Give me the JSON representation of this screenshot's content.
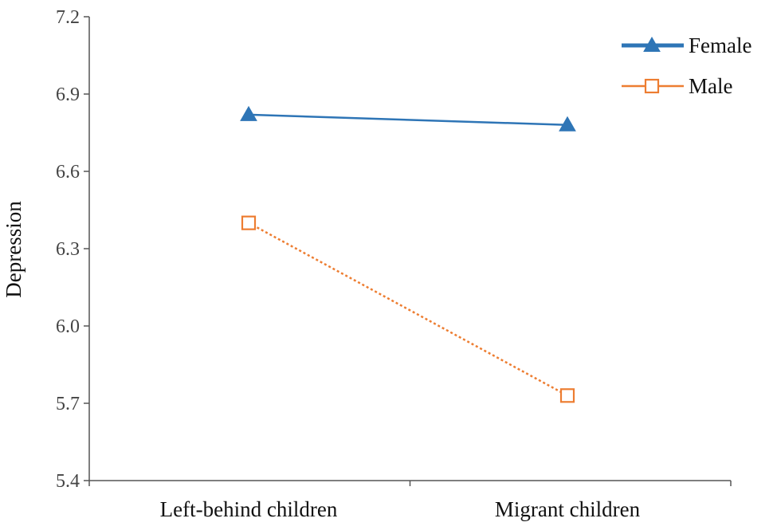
{
  "chart_data": {
    "type": "line",
    "title": "",
    "xlabel": "",
    "ylabel": "Depression",
    "ylim": [
      5.4,
      7.2
    ],
    "yticks": [
      "5.4",
      "5.7",
      "6.0",
      "6.3",
      "6.6",
      "6.9",
      "7.2"
    ],
    "categories": [
      "Left-behind children",
      "Migrant children"
    ],
    "grid": false,
    "legend_position": "top-right",
    "series": [
      {
        "name": "Female",
        "values": [
          6.82,
          6.78
        ],
        "color": "#2e75b6",
        "line_style": "solid",
        "marker": "filled-triangle"
      },
      {
        "name": "Male",
        "values": [
          6.4,
          5.73
        ],
        "color": "#ed7d31",
        "line_style": "dotted",
        "marker": "open-square"
      }
    ]
  }
}
